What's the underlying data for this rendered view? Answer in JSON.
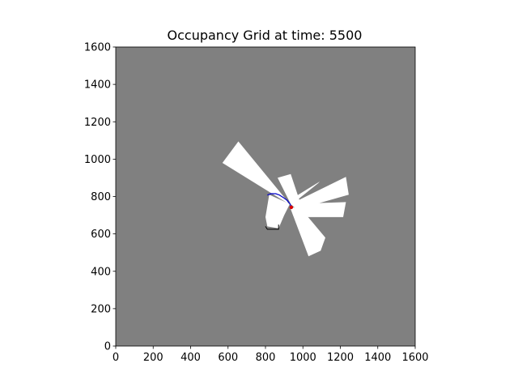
{
  "chart_data": {
    "type": "heatmap",
    "title": "Occupancy Grid at time: 5500",
    "xlabel": "",
    "ylabel": "",
    "xlim": [
      0,
      1600
    ],
    "ylim": [
      0,
      1600
    ],
    "xticks": [
      0,
      200,
      400,
      600,
      800,
      1000,
      1200,
      1400,
      1600
    ],
    "yticks": [
      0,
      200,
      400,
      600,
      800,
      1000,
      1200,
      1400,
      1600
    ],
    "grid": false,
    "colors": {
      "unknown": "#808080",
      "free": "#ffffff",
      "occupied": "#000000",
      "trajectory": "#0000cc",
      "robot": "#dd0000"
    },
    "free_regions": [
      [
        [
          925,
          760
        ],
        [
          570,
          980
        ],
        [
          655,
          1095
        ],
        [
          905,
          790
        ]
      ],
      [
        [
          930,
          760
        ],
        [
          820,
          810
        ],
        [
          800,
          690
        ],
        [
          810,
          640
        ],
        [
          870,
          630
        ],
        [
          900,
          700
        ]
      ],
      [
        [
          935,
          760
        ],
        [
          865,
          900
        ],
        [
          935,
          920
        ],
        [
          985,
          770
        ]
      ],
      [
        [
          935,
          760
        ],
        [
          1230,
          905
        ],
        [
          1245,
          810
        ],
        [
          1000,
          740
        ]
      ],
      [
        [
          935,
          760
        ],
        [
          1230,
          770
        ],
        [
          1215,
          690
        ],
        [
          1010,
          690
        ]
      ],
      [
        [
          930,
          745
        ],
        [
          1030,
          480
        ],
        [
          1095,
          510
        ],
        [
          1120,
          580
        ],
        [
          990,
          735
        ]
      ],
      [
        [
          930,
          750
        ],
        [
          1080,
          870
        ],
        [
          1090,
          880
        ],
        [
          960,
          800
        ]
      ]
    ],
    "occupied_boundary": [
      [
        800,
        640
      ],
      [
        810,
        625
      ],
      [
        870,
        625
      ],
      [
        870,
        650
      ]
    ],
    "trajectory": [
      [
        810,
        808
      ],
      [
        830,
        815
      ],
      [
        855,
        815
      ],
      [
        875,
        808
      ],
      [
        895,
        795
      ],
      [
        915,
        780
      ],
      [
        930,
        762
      ],
      [
        937,
        748
      ]
    ],
    "robot_position": [
      938,
      742
    ]
  }
}
